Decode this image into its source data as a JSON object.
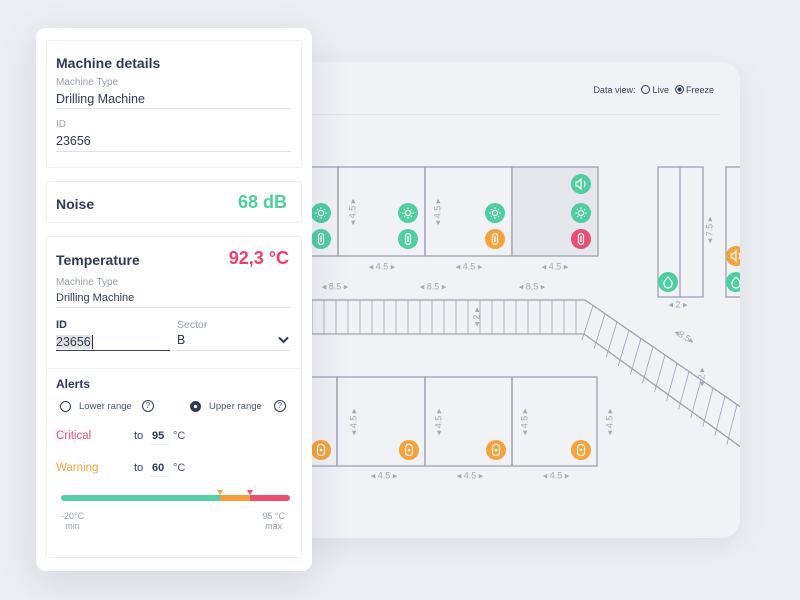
{
  "data_view": {
    "label": "Data view:",
    "options": [
      {
        "label": "Live",
        "selected": false
      },
      {
        "label": "Freeze",
        "selected": true
      }
    ]
  },
  "details": {
    "title": "Machine details",
    "type_label": "Machine Type",
    "type_value": "Drilling Machine",
    "id_label": "ID",
    "id_value": "23656"
  },
  "noise": {
    "title": "Noise",
    "value": "68 dB",
    "color": "#4fcfa0"
  },
  "temperature": {
    "title": "Temperature",
    "value": "92,3 °C",
    "color": "#f03e6c",
    "type_label": "Machine Type",
    "type_value": "Drilling Machine",
    "id_label": "ID",
    "id_value": "23656",
    "sector_label": "Sector",
    "sector_value": "B"
  },
  "alerts": {
    "title": "Alerts",
    "lower": "Lower range",
    "upper": "Upper range",
    "selected": "upper",
    "critical": {
      "label": "Critical",
      "to": "to",
      "value": "95",
      "unit": "°C",
      "color": "#f04e78"
    },
    "warning": {
      "label": "Warning",
      "to": "to",
      "value": "60",
      "unit": "°C",
      "color": "#f7a23b"
    },
    "range": {
      "min": "-20°C",
      "min_label": "min",
      "max": "95 °C",
      "max_label": "max",
      "min_value": -20,
      "max_value": 95,
      "warning_marker": 60,
      "critical_marker": 75
    }
  },
  "map": {
    "dims": {
      "w45": "4.5",
      "w85": "8.5",
      "w2": "2",
      "h75": "7.5"
    },
    "colors": {
      "ok": "#4fcfa0",
      "warn": "#f7a23b",
      "crit": "#ea4f72",
      "line": "#9aa1b3"
    },
    "top_icons": [
      [
        "sun",
        "clip"
      ],
      [
        "sun",
        "clip"
      ],
      [
        "sun",
        "clip"
      ],
      [
        "speaker",
        "sun",
        "clip"
      ]
    ],
    "top_icon_status": [
      [
        "ok",
        "ok"
      ],
      [
        "ok",
        "ok"
      ],
      [
        "ok",
        "warn"
      ],
      [
        "ok",
        "ok",
        "crit"
      ]
    ],
    "bottom_icons": [
      "sensor",
      "sensor",
      "sensor",
      "sensor"
    ]
  }
}
